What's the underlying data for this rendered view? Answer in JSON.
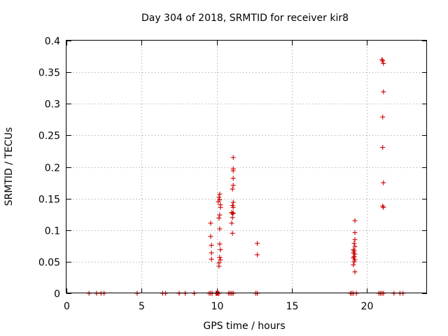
{
  "chart_data": {
    "type": "scatter",
    "title": "Day 304 of 2018, SRMTID for receiver kir8",
    "xlabel": "GPS time / hours",
    "ylabel": "SRMTID / TECUs",
    "xlim": [
      0,
      24
    ],
    "ylim": [
      0,
      0.4
    ],
    "xticks": [
      0,
      5,
      10,
      15,
      20
    ],
    "xtick_labels": [
      "0",
      "5",
      "10",
      "15",
      "20"
    ],
    "yticks": [
      0,
      0.05,
      0.1,
      0.15,
      0.2,
      0.25,
      0.3,
      0.35,
      0.4
    ],
    "ytick_labels": [
      "0",
      "0.05",
      "0.1",
      "0.15",
      "0.2",
      "0.25",
      "0.3",
      "0.35",
      "0.4"
    ],
    "grid": true,
    "marker": "plus",
    "color": "#cc0000",
    "series": [
      {
        "name": "SRMTID",
        "points": [
          [
            1.5,
            0
          ],
          [
            2.0,
            0
          ],
          [
            2.3,
            0
          ],
          [
            2.5,
            0
          ],
          [
            4.7,
            0
          ],
          [
            6.4,
            0
          ],
          [
            6.6,
            0
          ],
          [
            7.5,
            0
          ],
          [
            7.9,
            0
          ],
          [
            8.5,
            0
          ],
          [
            9.5,
            0
          ],
          [
            9.6,
            0
          ],
          [
            9.7,
            0
          ],
          [
            9.95,
            0
          ],
          [
            10.0,
            0
          ],
          [
            10.05,
            0
          ],
          [
            10.1,
            0
          ],
          [
            10.15,
            0
          ],
          [
            10.8,
            0
          ],
          [
            10.9,
            0
          ],
          [
            11.0,
            0
          ],
          [
            11.1,
            0
          ],
          [
            12.6,
            0
          ],
          [
            12.7,
            0
          ],
          [
            18.9,
            0
          ],
          [
            19.0,
            0
          ],
          [
            19.1,
            0
          ],
          [
            19.3,
            0
          ],
          [
            20.8,
            0
          ],
          [
            20.9,
            0
          ],
          [
            21.0,
            0
          ],
          [
            21.1,
            0
          ],
          [
            21.8,
            0
          ],
          [
            22.2,
            0
          ],
          [
            22.4,
            0
          ],
          [
            9.6,
            0.111
          ],
          [
            9.6,
            0.09
          ],
          [
            9.65,
            0.076
          ],
          [
            9.65,
            0.064
          ],
          [
            9.65,
            0.054
          ],
          [
            10.1,
            0.145
          ],
          [
            10.15,
            0.152
          ],
          [
            10.2,
            0.157
          ],
          [
            10.2,
            0.148
          ],
          [
            10.25,
            0.14
          ],
          [
            10.25,
            0.136
          ],
          [
            10.2,
            0.124
          ],
          [
            10.15,
            0.119
          ],
          [
            10.2,
            0.102
          ],
          [
            10.2,
            0.078
          ],
          [
            10.25,
            0.069
          ],
          [
            10.2,
            0.057
          ],
          [
            10.25,
            0.053
          ],
          [
            10.15,
            0.048
          ],
          [
            10.15,
            0.043
          ],
          [
            11.1,
            0.215
          ],
          [
            11.1,
            0.197
          ],
          [
            11.1,
            0.194
          ],
          [
            11.1,
            0.182
          ],
          [
            11.1,
            0.171
          ],
          [
            11.05,
            0.165
          ],
          [
            11.1,
            0.144
          ],
          [
            11.05,
            0.139
          ],
          [
            11.1,
            0.136
          ],
          [
            11.0,
            0.128
          ],
          [
            11.05,
            0.126
          ],
          [
            11.1,
            0.127
          ],
          [
            11.05,
            0.12
          ],
          [
            11.0,
            0.111
          ],
          [
            11.05,
            0.095
          ],
          [
            12.7,
            0.079
          ],
          [
            12.7,
            0.061
          ],
          [
            19.2,
            0.115
          ],
          [
            19.2,
            0.096
          ],
          [
            19.2,
            0.085
          ],
          [
            19.15,
            0.079
          ],
          [
            19.2,
            0.074
          ],
          [
            19.1,
            0.069
          ],
          [
            19.15,
            0.067
          ],
          [
            19.1,
            0.064
          ],
          [
            19.2,
            0.062
          ],
          [
            19.15,
            0.058
          ],
          [
            19.1,
            0.056
          ],
          [
            19.2,
            0.053
          ],
          [
            19.15,
            0.05
          ],
          [
            19.1,
            0.045
          ],
          [
            19.2,
            0.034
          ],
          [
            21.0,
            0.37
          ],
          [
            21.05,
            0.368
          ],
          [
            21.1,
            0.364
          ],
          [
            21.1,
            0.319
          ],
          [
            21.05,
            0.279
          ],
          [
            21.05,
            0.231
          ],
          [
            21.1,
            0.175
          ],
          [
            21.05,
            0.138
          ],
          [
            21.1,
            0.136
          ]
        ]
      }
    ]
  }
}
